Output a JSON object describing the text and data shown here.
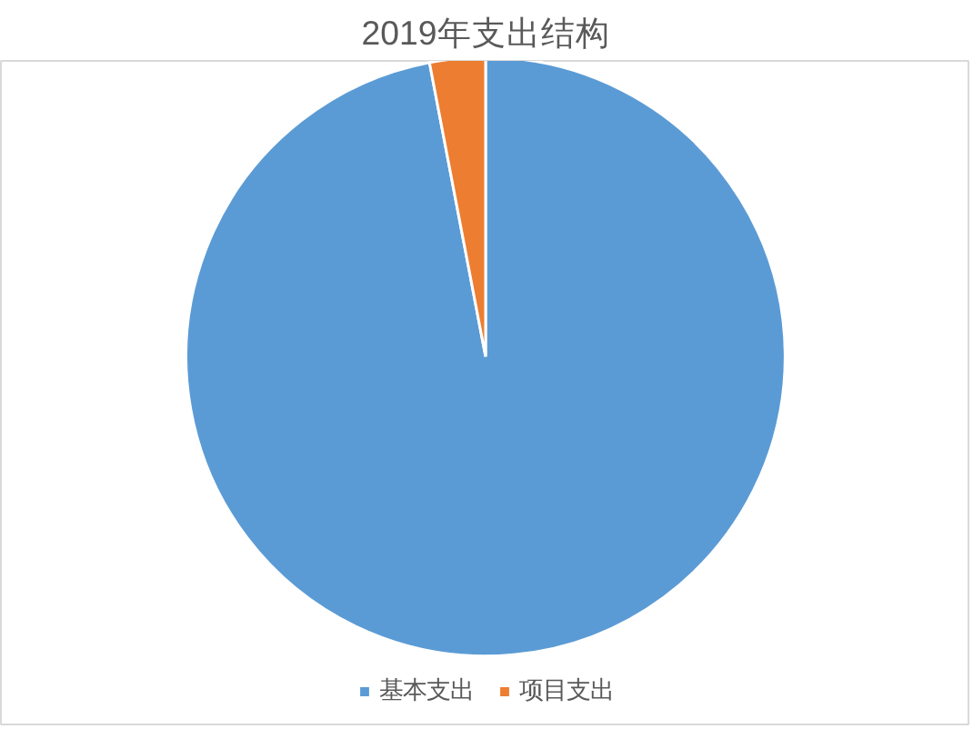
{
  "chart_data": {
    "type": "pie",
    "title": "2019年支出结构",
    "categories": [
      "基本支出",
      "项目支出"
    ],
    "values": [
      97,
      3
    ],
    "colors": [
      "#5b9bd5",
      "#ed7d31"
    ],
    "legend": "bottom"
  }
}
